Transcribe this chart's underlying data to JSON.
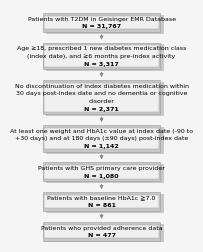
{
  "boxes": [
    {
      "lines": [
        "Patients with T2DM in Geisinger EMR Database",
        "N = 31,767"
      ],
      "n_line_idx": 1
    },
    {
      "lines": [
        "Age ≥18, prescribed 1 new diabetes medication class",
        "(index date), and ≥6 months pre-index activity",
        "N = 3,317"
      ],
      "n_line_idx": 2
    },
    {
      "lines": [
        "No discontinuation of index diabetes medication within",
        "30 days post-index date and no dementia or cognitive",
        "disorder",
        "N = 2,371"
      ],
      "n_line_idx": 3
    },
    {
      "lines": [
        "At least one weight and HbA1c value at index date (-90 to",
        "+30 days) and at 180 days (±90 days) post-index date",
        "N = 1,142"
      ],
      "n_line_idx": 2
    },
    {
      "lines": [
        "Patients with GHS primary care provider",
        "N = 1,080"
      ],
      "n_line_idx": 1
    },
    {
      "lines": [
        "Patients with baseline HbA1c ≧7.0",
        "N = 861"
      ],
      "n_line_idx": 1
    },
    {
      "lines": [
        "Patients who provided adherence data",
        "N = 477"
      ],
      "n_line_idx": 1
    }
  ],
  "outer_facecolor": "#c8c8c8",
  "inner_facecolor": "#f0f0f0",
  "box_edgecolor": "#999999",
  "arrow_color": "#888888",
  "text_color": "#000000",
  "bg_color": "#f5f5f5",
  "fontsize": 4.5
}
